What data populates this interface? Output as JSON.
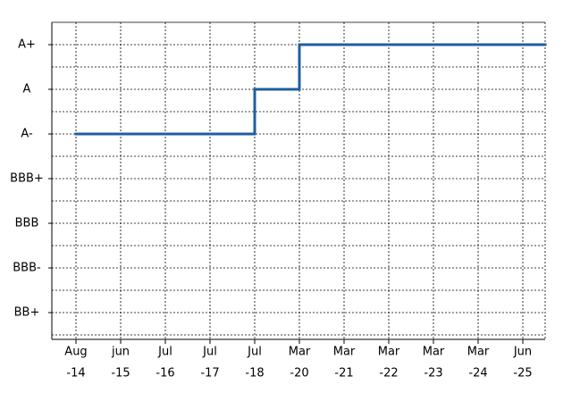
{
  "chart_data": {
    "type": "step",
    "categories": [
      [
        "Aug",
        "-14"
      ],
      [
        "jun",
        "-15"
      ],
      [
        "Jul",
        "-16"
      ],
      [
        "Jul",
        "-17"
      ],
      [
        "Jul",
        "-18"
      ],
      [
        "Mar",
        "-20"
      ],
      [
        "Mar",
        "-21"
      ],
      [
        "Mar",
        "-22"
      ],
      [
        "Mar",
        "-23"
      ],
      [
        "Mar",
        "-24"
      ],
      [
        "Jun",
        "-25"
      ]
    ],
    "series": [
      {
        "color": "#1f5fa0",
        "values": [
          5,
          5,
          5,
          5,
          6,
          7,
          7,
          7,
          7,
          7,
          7
        ]
      }
    ],
    "ylim": [
      0.4,
      7.5
    ],
    "yticks": [
      {
        "value": 1,
        "label": "BB+"
      },
      {
        "value": 2,
        "label": "BBB-"
      },
      {
        "value": 3,
        "label": "BBB"
      },
      {
        "value": 4,
        "label": "BBB+"
      },
      {
        "value": 5,
        "label": "A-"
      },
      {
        "value": 6,
        "label": "A"
      },
      {
        "value": 7,
        "label": "A+"
      }
    ],
    "yminorticks": [
      0.5,
      1.5,
      2.5,
      3.5,
      4.5,
      5.5,
      6.5
    ],
    "grid": true
  }
}
